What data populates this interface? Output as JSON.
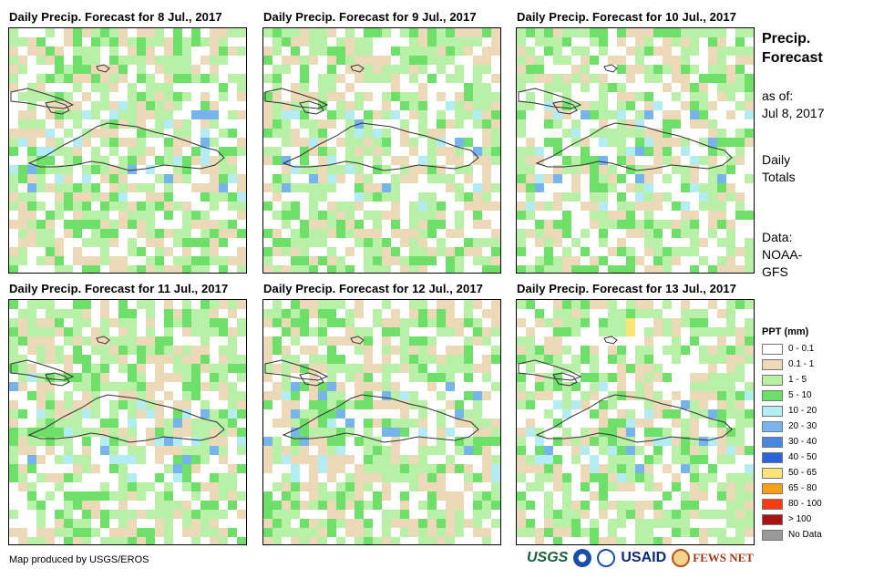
{
  "maps": [
    {
      "title": "Daily Precip. Forecast for 8 Jul., 2017",
      "seed": 11
    },
    {
      "title": "Daily Precip. Forecast for 9 Jul., 2017",
      "seed": 23
    },
    {
      "title": "Daily Precip. Forecast for 10 Jul., 2017",
      "seed": 37
    },
    {
      "title": "Daily Precip. Forecast for 11 Jul., 2017",
      "seed": 41
    },
    {
      "title": "Daily Precip. Forecast for 12 Jul., 2017",
      "seed": 53
    },
    {
      "title": "Daily Precip. Forecast for 13 Jul., 2017",
      "seed": 67
    }
  ],
  "side": {
    "title_line1": "Precip.",
    "title_line2": "Forecast",
    "asof_line1": "as of:",
    "asof_line2": "Jul 8, 2017",
    "daily_line1": "Daily",
    "daily_line2": "Totals",
    "data_line1": "Data:",
    "data_line2": "NOAA-",
    "data_line3": "GFS"
  },
  "legend": {
    "title": "PPT (mm)",
    "items": [
      {
        "label": "0 - 0.1",
        "color": "#ffffff"
      },
      {
        "label": "0.1 - 1",
        "color": "#ecd9b8"
      },
      {
        "label": "1 - 5",
        "color": "#b8f0a8"
      },
      {
        "label": "5 - 10",
        "color": "#6ee06a"
      },
      {
        "label": "10 - 20",
        "color": "#b4ecf4"
      },
      {
        "label": "20 - 30",
        "color": "#78b4ec"
      },
      {
        "label": "30 - 40",
        "color": "#4a86e2"
      },
      {
        "label": "40 - 50",
        "color": "#2a64d8"
      },
      {
        "label": "50 - 65",
        "color": "#fde47a"
      },
      {
        "label": "65 - 80",
        "color": "#f9a018"
      },
      {
        "label": "80 - 100",
        "color": "#f83c10"
      },
      {
        "label": "> 100",
        "color": "#a81414"
      },
      {
        "label": "No Data",
        "color": "#9a9a9a"
      }
    ]
  },
  "credit": "Map produced by USGS/EROS",
  "logos": {
    "usgs": "USGS",
    "usaid": "USAID",
    "fews": "FEWS NET"
  }
}
